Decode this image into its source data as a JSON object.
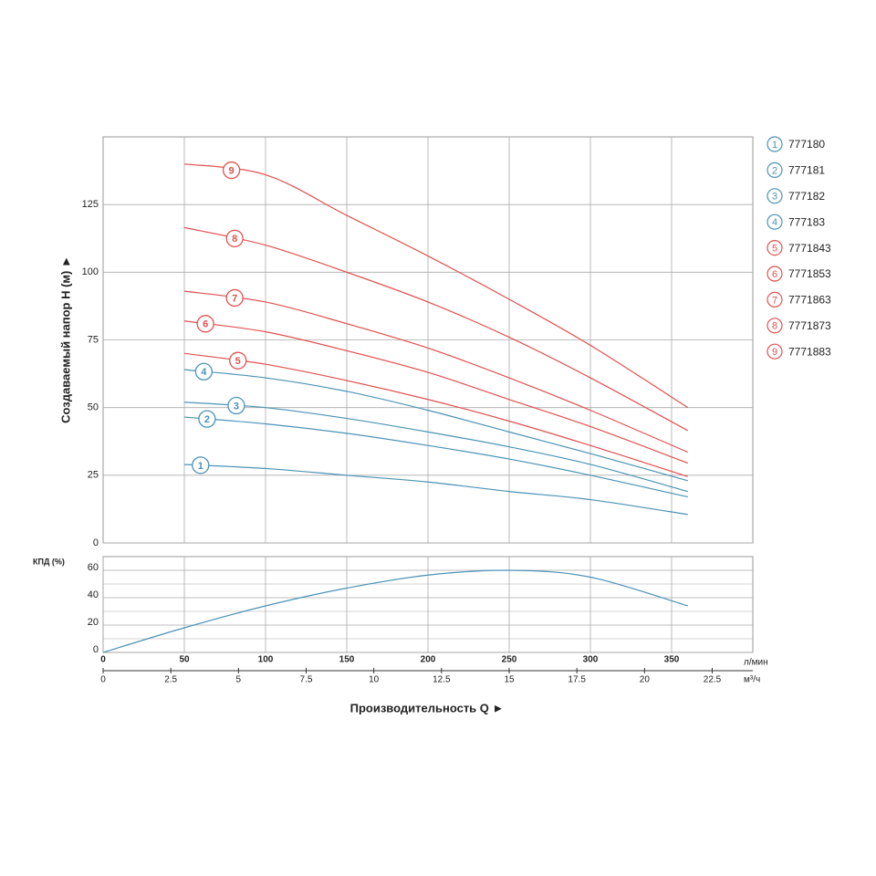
{
  "chart_data": [
    {
      "type": "line",
      "ylabel": "Создаваемый напор H (м) ►",
      "x": [
        50,
        100,
        150,
        200,
        250,
        300,
        360
      ],
      "xlim": [
        0,
        400
      ],
      "xticks": [
        50,
        100,
        150,
        200,
        250,
        300,
        350
      ],
      "ylim": [
        0,
        150
      ],
      "yticks": [
        0,
        25,
        50,
        75,
        100,
        125
      ],
      "grid": true,
      "series": [
        {
          "name": "777180",
          "marker": "1",
          "color": "#4a93b5",
          "values": [
            29,
            27.5,
            25,
            22.5,
            19,
            16,
            10.5
          ]
        },
        {
          "name": "777181",
          "marker": "2",
          "color": "#4a93b5",
          "values": [
            46.5,
            44,
            40.5,
            36,
            31,
            25,
            17
          ]
        },
        {
          "name": "777182",
          "marker": "3",
          "color": "#4a93b5",
          "values": [
            52,
            50,
            46,
            41,
            35.5,
            29,
            19
          ]
        },
        {
          "name": "777183",
          "marker": "4",
          "color": "#4a93b5",
          "values": [
            64,
            61,
            56,
            49,
            41,
            33,
            23
          ]
        },
        {
          "name": "7771843",
          "marker": "5",
          "color": "#e0514f",
          "values": [
            70,
            66,
            60,
            53,
            45,
            36,
            24.5
          ]
        },
        {
          "name": "7771853",
          "marker": "6",
          "color": "#e0514f",
          "values": [
            82,
            78,
            71,
            63,
            53,
            43,
            29.5
          ]
        },
        {
          "name": "7771863",
          "marker": "7",
          "color": "#e0514f",
          "values": [
            93,
            89,
            81,
            72,
            61,
            49,
            33.5
          ]
        },
        {
          "name": "7771873",
          "marker": "8",
          "color": "#e0514f",
          "values": [
            116.5,
            110,
            100,
            89,
            76,
            61,
            41.5
          ]
        },
        {
          "name": "7771883",
          "marker": "9",
          "color": "#e0514f",
          "values": [
            140,
            136,
            121,
            106,
            90,
            73,
            50
          ]
        }
      ]
    },
    {
      "type": "line",
      "ylabel": "КПД (%)",
      "xlabel": "Производительность Q ►",
      "x": [
        0,
        50,
        100,
        150,
        200,
        250,
        300,
        360
      ],
      "xlim": [
        0,
        400
      ],
      "xticks": [
        0,
        50,
        100,
        150,
        200,
        250,
        300,
        350
      ],
      "xunit": "л/мин",
      "x2lim": [
        0,
        24
      ],
      "x2ticks": [
        0,
        2.5,
        5,
        7.5,
        10,
        12.5,
        15,
        17.5,
        20,
        22.5
      ],
      "x2unit": "м³/ч",
      "ylim": [
        0,
        70
      ],
      "yticks": [
        0,
        20,
        40,
        60
      ],
      "grid": true,
      "series": [
        {
          "color": "#4a93b5",
          "values": [
            0,
            18,
            34,
            47,
            56.5,
            60,
            55,
            34
          ]
        }
      ]
    }
  ]
}
